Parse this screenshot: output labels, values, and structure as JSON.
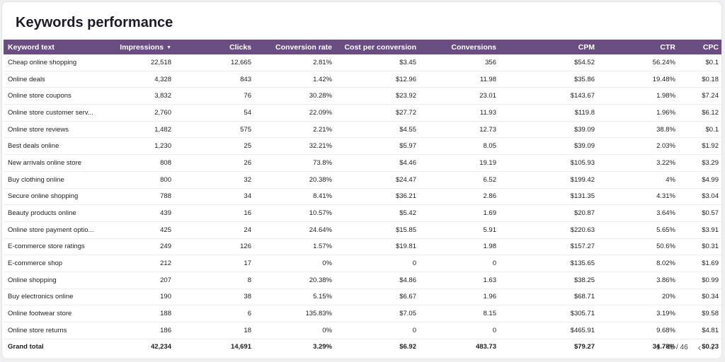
{
  "header": {
    "title": "Keywords performance"
  },
  "table": {
    "sort_icon": "sort-desc-icon",
    "columns": [
      "Keyword text",
      "Impressions",
      "Clicks",
      "Conversion rate",
      "Cost per conversion",
      "Conversions",
      "CPM",
      "CTR",
      "CPC"
    ],
    "rows": [
      [
        "Cheap online shopping",
        "22,518",
        "12,665",
        "2.81%",
        "$3.45",
        "356",
        "$54.52",
        "56.24%",
        "$0.1"
      ],
      [
        "Online deals",
        "4,328",
        "843",
        "1.42%",
        "$12.96",
        "11.98",
        "$35.86",
        "19.48%",
        "$0.18"
      ],
      [
        "Online store coupons",
        "3,832",
        "76",
        "30.28%",
        "$23.92",
        "23.01",
        "$143.67",
        "1.98%",
        "$7.24"
      ],
      [
        "Online store customer serv...",
        "2,760",
        "54",
        "22.09%",
        "$27.72",
        "11.93",
        "$119.8",
        "1.96%",
        "$6.12"
      ],
      [
        "Online store reviews",
        "1,482",
        "575",
        "2.21%",
        "$4.55",
        "12.73",
        "$39.09",
        "38.8%",
        "$0.1"
      ],
      [
        "Best deals online",
        "1,230",
        "25",
        "32.21%",
        "$5.97",
        "8.05",
        "$39.09",
        "2.03%",
        "$1.92"
      ],
      [
        "New arrivals online store",
        "808",
        "26",
        "73.8%",
        "$4.46",
        "19.19",
        "$105.93",
        "3.22%",
        "$3.29"
      ],
      [
        "Buy clothing online",
        "800",
        "32",
        "20.38%",
        "$24.47",
        "6.52",
        "$199.42",
        "4%",
        "$4.99"
      ],
      [
        "Secure online shopping",
        "788",
        "34",
        "8.41%",
        "$36.21",
        "2.86",
        "$131.35",
        "4.31%",
        "$3.04"
      ],
      [
        "Beauty products online",
        "439",
        "16",
        "10.57%",
        "$5.42",
        "1.69",
        "$20.87",
        "3.64%",
        "$0.57"
      ],
      [
        "Online store payment optio...",
        "425",
        "24",
        "24.64%",
        "$15.85",
        "5.91",
        "$220.63",
        "5.65%",
        "$3.91"
      ],
      [
        "E-commerce store ratings",
        "249",
        "126",
        "1.57%",
        "$19.81",
        "1.98",
        "$157.27",
        "50.6%",
        "$0.31"
      ],
      [
        "E-commerce shop",
        "212",
        "17",
        "0%",
        "0",
        "0",
        "$135.65",
        "8.02%",
        "$1.69"
      ],
      [
        "Online shopping",
        "207",
        "8",
        "20.38%",
        "$4.86",
        "1.63",
        "$38.25",
        "3.86%",
        "$0.99"
      ],
      [
        "Buy electronics online",
        "190",
        "38",
        "5.15%",
        "$6.67",
        "1.96",
        "$68.71",
        "20%",
        "$0.34"
      ],
      [
        "Online footwear store",
        "188",
        "6",
        "135.83%",
        "$7.05",
        "8.15",
        "$305.71",
        "3.19%",
        "$9.58"
      ],
      [
        "Online store returns",
        "186",
        "18",
        "0%",
        "0",
        "0",
        "$465.91",
        "9.68%",
        "$4.81"
      ]
    ],
    "total": [
      "Grand total",
      "42,234",
      "14,691",
      "3.29%",
      "$6.92",
      "483.73",
      "$79.27",
      "34.78%",
      "$0.23"
    ]
  },
  "pagination": {
    "range": "1 - 46 / 46",
    "prev_icon": "chevron-left-icon",
    "next_icon": "chevron-right-icon"
  }
}
